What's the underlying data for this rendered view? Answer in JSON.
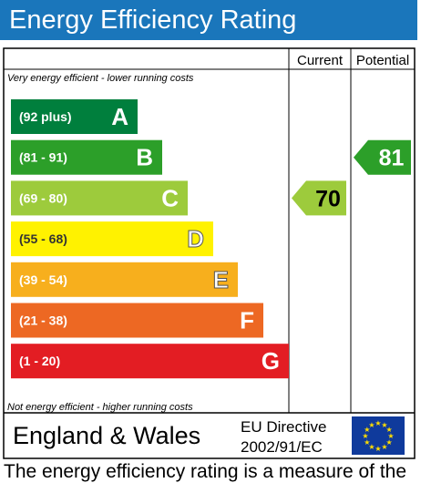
{
  "title": "Energy Efficiency Rating",
  "columns": {
    "current": "Current",
    "potential": "Potential"
  },
  "notes": {
    "top": "Very energy efficient - lower running costs",
    "bottom": "Not energy efficient - higher running costs"
  },
  "footer": {
    "country": "England & Wales",
    "directive_line1": "EU Directive",
    "directive_line2": "2002/91/EC"
  },
  "bottom_text": "The energy efficiency rating is a measure of the",
  "chart_data": {
    "type": "bar",
    "categories": [
      "A",
      "B",
      "C",
      "D",
      "E",
      "F",
      "G"
    ],
    "ranges": [
      "(92 plus)",
      "(81 - 91)",
      "(69 - 80)",
      "(55 - 68)",
      "(39 - 54)",
      "(21 - 38)",
      "(1 - 20)"
    ],
    "colors": [
      "#007f3d",
      "#2c9f29",
      "#9dcb3c",
      "#fff200",
      "#f7af1d",
      "#ed6823",
      "#e31d23"
    ],
    "current": {
      "value": 70,
      "band": "C",
      "color": "#9dcb3c"
    },
    "potential": {
      "value": 81,
      "band": "B",
      "color": "#2c9f29"
    }
  }
}
